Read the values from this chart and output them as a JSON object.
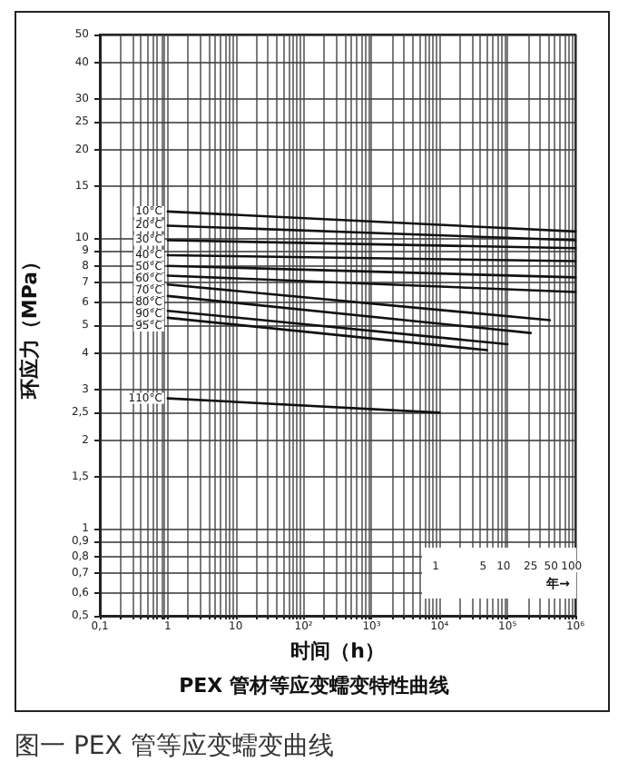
{
  "chart_data": {
    "type": "line",
    "title": "PEX 管材等应变蠕变特性曲线",
    "xlabel": "时间（h）",
    "ylabel": "环应力（MPa）",
    "annotations": [
      {
        "text": "1",
        "x": 8760
      },
      {
        "text": "5",
        "x": 43800
      },
      {
        "text": "10",
        "x": 87600
      },
      {
        "text": "25",
        "x": 219000
      },
      {
        "text": "50",
        "x": 438000
      },
      {
        "text": "100",
        "x": 876000
      },
      "年→",
      "图一  PEX 管等应变蠕变曲线"
    ],
    "log": "xy",
    "xlim": [
      0.1,
      1000000
    ],
    "xticks": [
      {
        "value": 0.1,
        "label": "0,1"
      },
      {
        "value": 0.2,
        "label": null
      },
      {
        "value": 0.3,
        "label": null
      },
      {
        "value": 0.4,
        "label": null
      },
      {
        "value": 0.5,
        "label": null
      },
      {
        "value": 0.6,
        "label": null
      },
      {
        "value": 0.7,
        "label": null
      },
      {
        "value": 0.8,
        "label": null
      },
      {
        "value": 0.9,
        "label": null
      },
      {
        "value": 1,
        "label": "1"
      },
      {
        "value": 2,
        "label": null
      },
      {
        "value": 3,
        "label": null
      },
      {
        "value": 4,
        "label": null
      },
      {
        "value": 5,
        "label": null
      },
      {
        "value": 6,
        "label": null
      },
      {
        "value": 7,
        "label": null
      },
      {
        "value": 8,
        "label": null
      },
      {
        "value": 9,
        "label": null
      },
      {
        "value": 10,
        "label": "10"
      },
      {
        "value": 20,
        "label": null
      },
      {
        "value": 30,
        "label": null
      },
      {
        "value": 40,
        "label": null
      },
      {
        "value": 50,
        "label": null
      },
      {
        "value": 60,
        "label": null
      },
      {
        "value": 70,
        "label": null
      },
      {
        "value": 80,
        "label": null
      },
      {
        "value": 90,
        "label": null
      },
      {
        "value": 100,
        "label": "10²"
      },
      {
        "value": 200,
        "label": null
      },
      {
        "value": 300,
        "label": null
      },
      {
        "value": 400,
        "label": null
      },
      {
        "value": 500,
        "label": null
      },
      {
        "value": 600,
        "label": null
      },
      {
        "value": 700,
        "label": null
      },
      {
        "value": 800,
        "label": null
      },
      {
        "value": 900,
        "label": null
      },
      {
        "value": 1000,
        "label": "10³"
      },
      {
        "value": 2000,
        "label": null
      },
      {
        "value": 3000,
        "label": null
      },
      {
        "value": 4000,
        "label": null
      },
      {
        "value": 5000,
        "label": null
      },
      {
        "value": 6000,
        "label": null
      },
      {
        "value": 7000,
        "label": null
      },
      {
        "value": 8000,
        "label": null
      },
      {
        "value": 9000,
        "label": null
      },
      {
        "value": 10000,
        "label": "10⁴"
      },
      {
        "value": 20000,
        "label": null
      },
      {
        "value": 30000,
        "label": null
      },
      {
        "value": 40000,
        "label": null
      },
      {
        "value": 50000,
        "label": null
      },
      {
        "value": 60000,
        "label": null
      },
      {
        "value": 70000,
        "label": null
      },
      {
        "value": 80000,
        "label": null
      },
      {
        "value": 90000,
        "label": null
      },
      {
        "value": 100000,
        "label": "10⁵"
      },
      {
        "value": 200000,
        "label": null
      },
      {
        "value": 300000,
        "label": null
      },
      {
        "value": 400000,
        "label": null
      },
      {
        "value": 500000,
        "label": null
      },
      {
        "value": 600000,
        "label": null
      },
      {
        "value": 700000,
        "label": null
      },
      {
        "value": 800000,
        "label": null
      },
      {
        "value": 900000,
        "label": null
      },
      {
        "value": 1000000,
        "label": "10⁶"
      }
    ],
    "ylim": [
      0.5,
      50
    ],
    "yticks": [
      {
        "value": 0.5,
        "label": "0,5"
      },
      {
        "value": 0.6,
        "label": "0,6"
      },
      {
        "value": 0.7,
        "label": "0,7"
      },
      {
        "value": 0.8,
        "label": "0,8"
      },
      {
        "value": 0.9,
        "label": "0,9"
      },
      1,
      {
        "value": 1.5,
        "label": "1,5"
      },
      2,
      {
        "value": 2.5,
        "label": "2,5"
      },
      3,
      4,
      5,
      6,
      7,
      8,
      9,
      10,
      15,
      20,
      25,
      30,
      40,
      50
    ],
    "grid": true,
    "legend": false,
    "marker": "none",
    "line_style": "solid",
    "series": [
      {
        "name": "10°C",
        "color": "#111111",
        "x": [
          1,
          1000000
        ],
        "values": [
          12.3,
          10.5
        ]
      },
      {
        "name": "20°C",
        "color": "#111111",
        "x": [
          1,
          1000000
        ],
        "values": [
          11.0,
          9.8
        ]
      },
      {
        "name": "30°C",
        "color": "#111111",
        "x": [
          1,
          1000000
        ],
        "values": [
          9.8,
          9.2
        ]
      },
      {
        "name": "40°C",
        "color": "#111111",
        "x": [
          1,
          1000000
        ],
        "values": [
          8.7,
          8.3
        ]
      },
      {
        "name": "50°C",
        "color": "#111111",
        "x": [
          1,
          1000000
        ],
        "values": [
          8.0,
          7.3
        ]
      },
      {
        "name": "60°C",
        "color": "#111111",
        "x": [
          1,
          1000000
        ],
        "values": [
          7.4,
          6.5
        ]
      },
      {
        "name": "70°C",
        "color": "#111111",
        "x": [
          1,
          420000
        ],
        "values": [
          6.9,
          5.2
        ]
      },
      {
        "name": "80°C",
        "color": "#111111",
        "x": [
          1,
          220000
        ],
        "values": [
          6.3,
          4.7
        ]
      },
      {
        "name": "90°C",
        "color": "#111111",
        "x": [
          1,
          100000
        ],
        "values": [
          5.6,
          4.3
        ]
      },
      {
        "name": "95°C",
        "color": "#111111",
        "x": [
          1,
          50000
        ],
        "values": [
          5.3,
          4.1
        ]
      },
      {
        "name": "110°C",
        "color": "#111111",
        "x": [
          1,
          10000
        ],
        "values": [
          2.8,
          2.5
        ]
      }
    ]
  }
}
